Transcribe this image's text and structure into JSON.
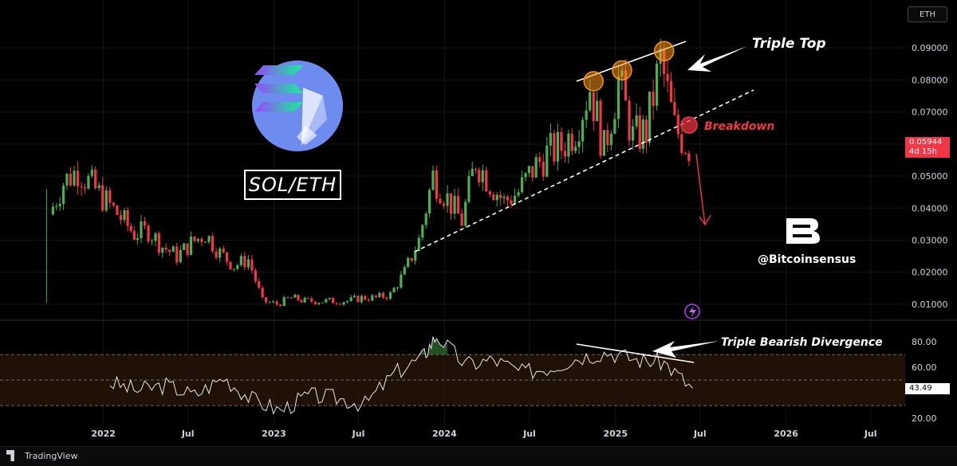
{
  "app": {
    "footer_brand": "TradingView",
    "symbol_button": "ETH"
  },
  "annotations": {
    "pair_label": "SOL/ETH",
    "triple_top": "Triple Top",
    "breakdown": "Breakdown",
    "divergence": "Triple Bearish Divergence",
    "watermark": "@Bitcoinsensus"
  },
  "price_tag": {
    "value": "0.05944",
    "countdown": "4d 15h",
    "color": "#f23645"
  },
  "rsi_tag": {
    "value": "43.49"
  },
  "colors": {
    "up": "#4caf50",
    "down": "#f23645",
    "highlight": "#f7931a",
    "rsi_band": "#2a1708"
  },
  "icons": [
    "solana-logo-icon",
    "ethereum-logo-icon",
    "bitcoinsensus-logo-icon",
    "lightning-icon",
    "arrow-icon"
  ],
  "chart_data": [
    {
      "type": "candlestick",
      "title": "SOL/ETH",
      "x_axis_labels": [
        "2022",
        "Jul",
        "2023",
        "Jul",
        "2024",
        "Jul",
        "2025",
        "Jul",
        "2026",
        "Jul"
      ],
      "y_axis_labels": [
        "0.09000",
        "0.08000",
        "0.07000",
        "0.06000",
        "0.05000",
        "0.04000",
        "0.03000",
        "0.02000",
        "0.01000"
      ],
      "ylim": [
        0.0055,
        0.0975
      ],
      "xlim": [
        "2021-08-01",
        "2026-09-01"
      ],
      "grid": true,
      "last_price": 0.05944,
      "x": [
        "2021-09",
        "2021-10",
        "2021-11",
        "2021-12",
        "2022-01",
        "2022-02",
        "2022-03",
        "2022-04",
        "2022-05",
        "2022-06",
        "2022-07",
        "2022-08",
        "2022-09",
        "2022-10",
        "2022-11",
        "2022-12",
        "2023-01",
        "2023-02",
        "2023-03",
        "2023-04",
        "2023-05",
        "2023-06",
        "2023-07",
        "2023-08",
        "2023-09",
        "2023-10",
        "2023-11",
        "2023-12",
        "2024-01",
        "2024-02",
        "2024-03",
        "2024-04",
        "2024-05",
        "2024-06",
        "2024-07",
        "2024-08",
        "2024-09",
        "2024-10",
        "2024-11",
        "2024-12",
        "2025-01",
        "2025-02",
        "2025-03",
        "2025-04",
        "2025-05",
        "2025-06"
      ],
      "close": [
        0.038,
        0.048,
        0.052,
        0.047,
        0.042,
        0.037,
        0.032,
        0.033,
        0.028,
        0.025,
        0.029,
        0.032,
        0.026,
        0.022,
        0.024,
        0.011,
        0.01,
        0.012,
        0.011,
        0.011,
        0.011,
        0.011,
        0.012,
        0.012,
        0.013,
        0.02,
        0.03,
        0.05,
        0.043,
        0.036,
        0.055,
        0.048,
        0.042,
        0.045,
        0.052,
        0.057,
        0.059,
        0.065,
        0.078,
        0.058,
        0.08,
        0.062,
        0.064,
        0.086,
        0.065,
        0.059
      ],
      "highlighted_peaks": [
        {
          "x": "2024-11",
          "y": 0.0796
        },
        {
          "x": "2025-01",
          "y": 0.083
        },
        {
          "x": "2025-04",
          "y": 0.089
        }
      ],
      "annotations": [
        "Triple Top",
        "Breakdown"
      ]
    },
    {
      "type": "line",
      "y_axis_labels": [
        "80.00",
        "60.00",
        "20.00"
      ],
      "ylim": [
        17,
        95
      ],
      "last_value": 43.49,
      "x": [
        "2022-01",
        "2022-03",
        "2022-05",
        "2022-07",
        "2022-09",
        "2022-11",
        "2023-01",
        "2023-03",
        "2023-05",
        "2023-07",
        "2023-09",
        "2023-11",
        "2023-12",
        "2024-02",
        "2024-04",
        "2024-06",
        "2024-08",
        "2024-10",
        "2024-12",
        "2025-02",
        "2025-04",
        "2025-06"
      ],
      "values": [
        48,
        42,
        46,
        38,
        52,
        35,
        26,
        38,
        36,
        31,
        55,
        68,
        85,
        62,
        66,
        56,
        60,
        68,
        72,
        66,
        64,
        43
      ],
      "reference_lines": [
        70,
        50,
        30
      ],
      "annotations": [
        "Triple Bearish Divergence"
      ]
    }
  ]
}
